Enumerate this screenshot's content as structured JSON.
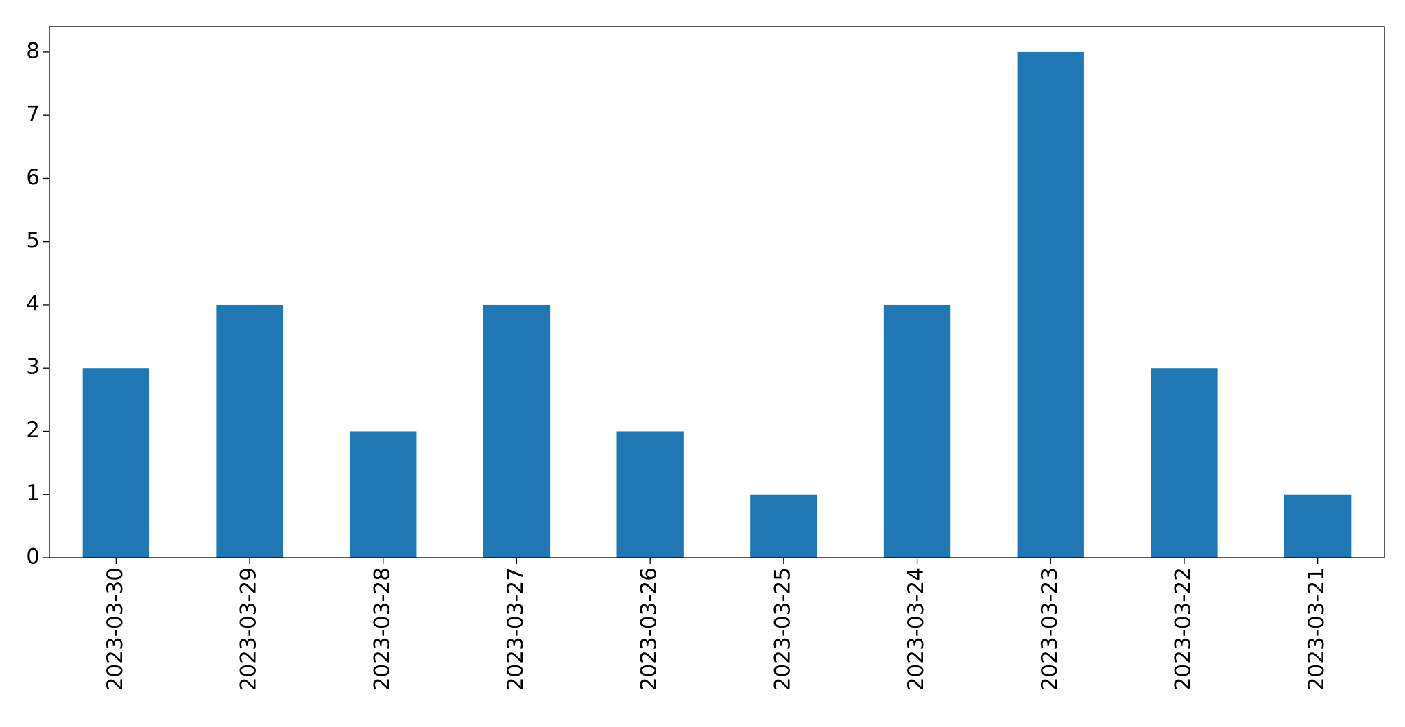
{
  "chart_data": {
    "type": "bar",
    "categories": [
      "2023-03-30",
      "2023-03-29",
      "2023-03-28",
      "2023-03-27",
      "2023-03-26",
      "2023-03-25",
      "2023-03-24",
      "2023-03-23",
      "2023-03-22",
      "2023-03-21"
    ],
    "values": [
      3,
      4,
      2,
      4,
      2,
      1,
      4,
      8,
      3,
      1
    ],
    "color": "#1f77b4",
    "ylim": [
      0,
      8.4
    ],
    "yticks": [
      0,
      1,
      2,
      3,
      4,
      5,
      6,
      7,
      8
    ],
    "grid": false
  }
}
